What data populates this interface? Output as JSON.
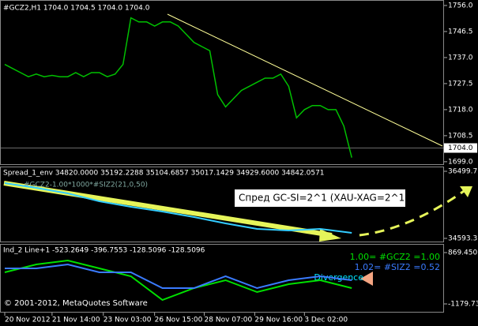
{
  "chart_data": [
    {
      "type": "line",
      "title": "#GCZ2,H1 1704.0 1704.5 1704.0 1704.0",
      "series": [
        {
          "name": "#GCZ2",
          "color": "#00c000",
          "values": [
            1734.5,
            1733,
            1731.5,
            1730,
            1731,
            1730,
            1730.5,
            1730,
            1730,
            1731.5,
            1730,
            1731.5,
            1731.5,
            1730,
            1731,
            1734.5,
            1751.5,
            1750,
            1750,
            1748.5,
            1750,
            1750,
            1748.5,
            1745.5,
            1742.5,
            1741,
            1739.5,
            1723.5,
            1719,
            1722,
            1725,
            1726.5,
            1728,
            1729.5,
            1729.5,
            1731,
            1726.5,
            1715,
            1718,
            1719.5,
            1719.5,
            1718,
            1718,
            1712,
            1700.5
          ]
        }
      ],
      "ylim": [
        1698.1,
        1758.0
      ],
      "yticks": [
        {
          "value": 1756.0,
          "label": "1756.0"
        },
        {
          "value": 1746.5,
          "label": "1746.5"
        },
        {
          "value": 1737.0,
          "label": "1737.0"
        },
        {
          "value": 1727.5,
          "label": "1727.5"
        },
        {
          "value": 1718.0,
          "label": "1718.0"
        },
        {
          "value": 1708.5,
          "label": "1708.5"
        },
        {
          "value": 1699.0,
          "label": "1699.0"
        }
      ],
      "last_price": {
        "value": 1704.0,
        "label": "1704.0"
      },
      "xlim": [
        -0.5,
        55.7
      ],
      "xticks": [
        {
          "value": 0,
          "label": "20 Nov 2012"
        },
        {
          "value": 6,
          "label": "21 Nov 14:00"
        },
        {
          "value": 12.5,
          "label": "23 Nov 03:00"
        },
        {
          "value": 19,
          "label": "26 Nov 15:00"
        },
        {
          "value": 25.3,
          "label": "28 Nov 07:00"
        },
        {
          "value": 31.7,
          "label": "29 Nov 16:00"
        },
        {
          "value": 38,
          "label": "3 Dec 02:00"
        }
      ]
    },
    {
      "type": "line",
      "title": "Spread_1_env 34820.0000 35192.2288 35104.6857 35017.1429 34929.6000 34842.0571",
      "subtitle": "#GCZ2-1.00*1000*#SIZ2(21,0,50)",
      "annotation": "Спред GC-SI=2^1 (XAU-XAG=2^1)",
      "x": [
        0,
        4,
        8,
        12,
        16,
        20,
        24,
        28,
        32,
        36,
        40,
        44
      ],
      "series": [
        {
          "name": "Spread",
          "color": "#33ccff",
          "values": [
            36163,
            36029,
            35872,
            35647,
            35490,
            35356,
            35199,
            35019,
            34862,
            34817,
            34862,
            34750
          ]
        }
      ],
      "ylim": [
        34503.6,
        36611.8
      ],
      "yticks": [
        {
          "value": 36499.7,
          "label": "36499.7"
        },
        {
          "value": 34593.3,
          "label": "34593.3"
        }
      ]
    },
    {
      "type": "line",
      "title": "Ind_2 Line+1 -523.2649 -396.7553 -128.5096 -128.5096",
      "annotation": "Divergence",
      "copyright": "© 2001-2012, MetaQuotes Software",
      "x": [
        0,
        4,
        8,
        12,
        16,
        20,
        24,
        28,
        32,
        36,
        40,
        44
      ],
      "series": [
        {
          "name": "1.00= #GCZ2 =1.00",
          "color": "#00e000",
          "values": [
            81.1,
            396.4,
            554.1,
            238.8,
            -76.5,
            -1022.4,
            -549.5,
            -234.2,
            -707.1,
            -391.8,
            -234.2,
            -549.5
          ]
        },
        {
          "name": "1.02= #SIZ2 =0.52",
          "color": "#3a7bff",
          "values": [
            238.8,
            238.8,
            396.4,
            81.1,
            81.1,
            -549.5,
            -549.5,
            -76.5,
            -549.5,
            -234.2,
            -76.5,
            -234.2
          ]
        }
      ],
      "ylim": [
        -1495.3,
        1184.7
      ],
      "yticks": [
        {
          "value": 869.45,
          "label": "869.450"
        },
        {
          "value": -1179.73,
          "label": "-1179.73"
        }
      ]
    }
  ]
}
